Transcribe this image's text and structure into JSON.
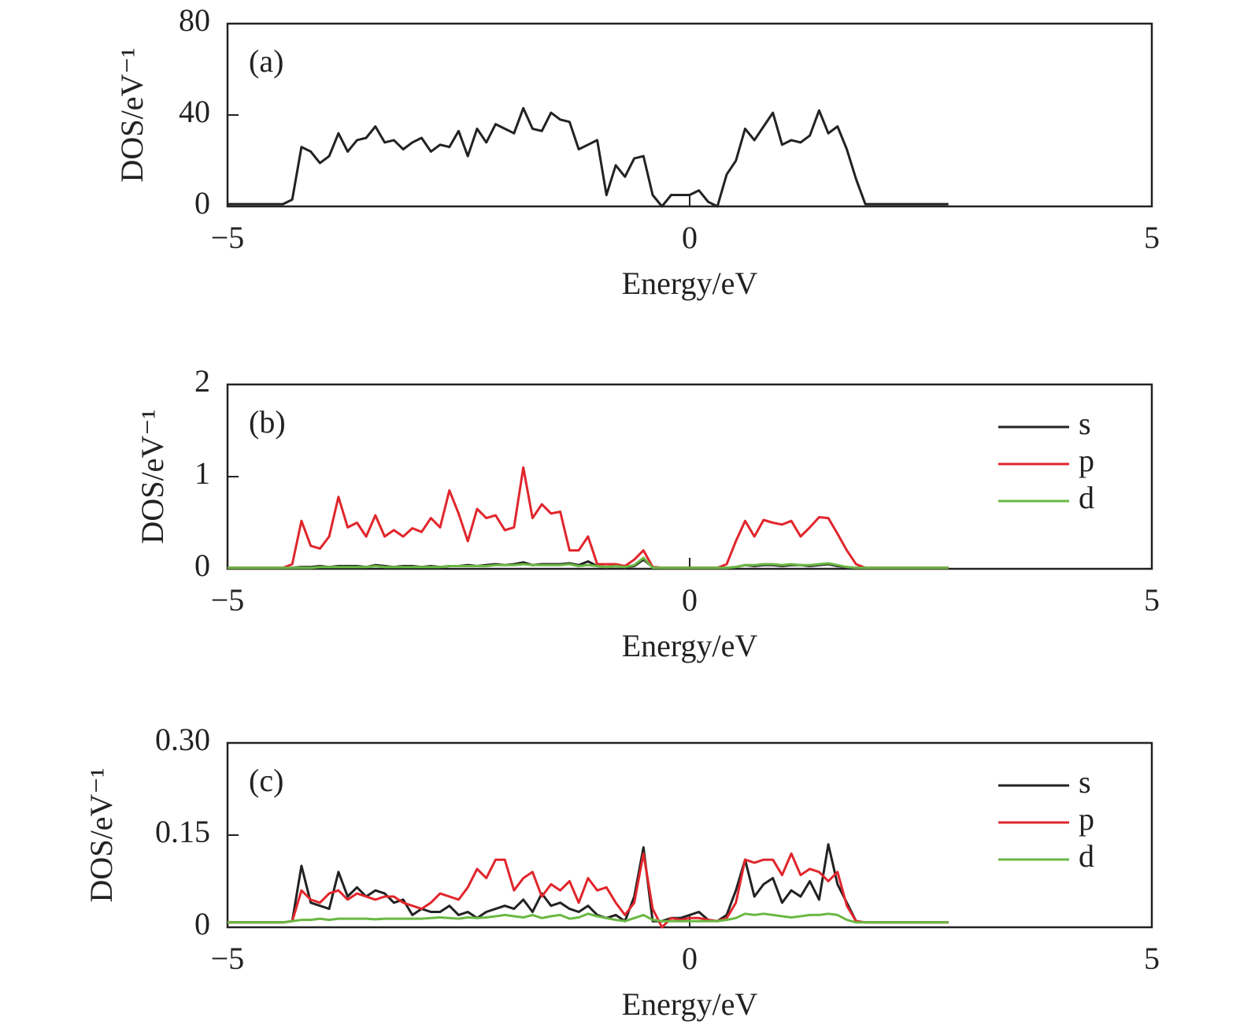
{
  "chart_data": [
    {
      "type": "line",
      "annotation": "(a)",
      "xlabel": "Energy/eV",
      "ylabel": "DOS/eV⁻¹",
      "xlim": [
        -5,
        5
      ],
      "ylim": [
        0,
        80
      ],
      "xticks": [
        {
          "value": -5,
          "label": "−5"
        },
        0,
        5
      ],
      "yticks": [
        0,
        40,
        80
      ],
      "x": [
        -5,
        -4.9,
        -4.8,
        -4.7,
        -4.6,
        -4.5,
        -4.4,
        -4.3,
        -4.2,
        -4.1,
        -4,
        -3.9,
        -3.8,
        -3.7,
        -3.6,
        -3.5,
        -3.4,
        -3.3,
        -3.2,
        -3.1,
        -3,
        -2.9,
        -2.8,
        -2.7,
        -2.6,
        -2.5,
        -2.4,
        -2.3,
        -2.2,
        -2.1,
        -2,
        -1.9,
        -1.8,
        -1.7,
        -1.6,
        -1.5,
        -1.4,
        -1.3,
        -1.2,
        -1.1,
        -1,
        -0.9,
        -0.8,
        -0.7,
        -0.6,
        -0.5,
        -0.4,
        -0.3,
        -0.2,
        -0.1,
        0,
        0.1,
        0.2,
        0.3,
        0.4,
        0.5,
        0.6,
        0.7,
        0.8,
        0.9,
        1,
        1.1,
        1.2,
        1.3,
        1.4,
        1.5,
        1.6,
        1.7,
        1.8,
        1.9,
        2,
        2.1,
        2.2,
        2.3,
        2.4,
        2.5,
        2.6,
        2.7,
        2.8
      ],
      "color": "#222222",
      "values": [
        1,
        1,
        1,
        1,
        1,
        1,
        1,
        3,
        26,
        24,
        19,
        22,
        32,
        24,
        29,
        30,
        35,
        28,
        29,
        25,
        28,
        30,
        24,
        27,
        26,
        33,
        22,
        34,
        28,
        36,
        34,
        32,
        43,
        34,
        33,
        41,
        38,
        37,
        25,
        27,
        29,
        5,
        18,
        13,
        21,
        22,
        5,
        0,
        5,
        5,
        5,
        7,
        2,
        0,
        14,
        20,
        34,
        29,
        35,
        41,
        27,
        29,
        28,
        31,
        42,
        32,
        35,
        25,
        12,
        1,
        1,
        1,
        1,
        1,
        1,
        1,
        1,
        1,
        1
      ]
    },
    {
      "type": "line",
      "annotation": "(b)",
      "xlabel": "Energy/eV",
      "ylabel": "DOS/eV⁻¹",
      "xlim": [
        -5,
        5
      ],
      "ylim": [
        0,
        2
      ],
      "xticks": [
        {
          "value": -5,
          "label": "−5"
        },
        0,
        5
      ],
      "yticks": [
        0,
        1,
        2
      ],
      "legend": "upper right",
      "x": [
        -5,
        -4.9,
        -4.8,
        -4.7,
        -4.6,
        -4.5,
        -4.4,
        -4.3,
        -4.2,
        -4.1,
        -4,
        -3.9,
        -3.8,
        -3.7,
        -3.6,
        -3.5,
        -3.4,
        -3.3,
        -3.2,
        -3.1,
        -3,
        -2.9,
        -2.8,
        -2.7,
        -2.6,
        -2.5,
        -2.4,
        -2.3,
        -2.2,
        -2.1,
        -2,
        -1.9,
        -1.8,
        -1.7,
        -1.6,
        -1.5,
        -1.4,
        -1.3,
        -1.2,
        -1.1,
        -1,
        -0.9,
        -0.8,
        -0.7,
        -0.6,
        -0.5,
        -0.4,
        -0.3,
        -0.2,
        -0.1,
        0,
        0.1,
        0.2,
        0.3,
        0.4,
        0.5,
        0.6,
        0.7,
        0.8,
        0.9,
        1,
        1.1,
        1.2,
        1.3,
        1.4,
        1.5,
        1.6,
        1.7,
        1.8,
        1.9,
        2,
        2.1,
        2.2,
        2.3,
        2.4,
        2.5,
        2.6,
        2.7,
        2.8
      ],
      "series": [
        {
          "name": "s",
          "color": "#222222",
          "values": [
            0.01,
            0.01,
            0.01,
            0.01,
            0.01,
            0.01,
            0.01,
            0.01,
            0.02,
            0.02,
            0.03,
            0.02,
            0.03,
            0.03,
            0.03,
            0.02,
            0.04,
            0.03,
            0.02,
            0.03,
            0.03,
            0.02,
            0.03,
            0.02,
            0.03,
            0.03,
            0.04,
            0.03,
            0.04,
            0.05,
            0.04,
            0.05,
            0.07,
            0.04,
            0.05,
            0.05,
            0.05,
            0.06,
            0.04,
            0.08,
            0.03,
            0.02,
            0.03,
            0.02,
            0.03,
            0.1,
            0.02,
            0.01,
            0.01,
            0.01,
            0.01,
            0.01,
            0.01,
            0.01,
            0.01,
            0.02,
            0.04,
            0.03,
            0.04,
            0.04,
            0.03,
            0.04,
            0.04,
            0.03,
            0.04,
            0.05,
            0.03,
            0.02,
            0.01,
            0.01,
            0.01,
            0.01,
            0.01,
            0.01,
            0.01,
            0.01,
            0.01,
            0.01,
            0.01
          ]
        },
        {
          "name": "p",
          "color": "#e0262c",
          "values": [
            0.01,
            0.01,
            0.01,
            0.01,
            0.01,
            0.01,
            0.01,
            0.05,
            0.52,
            0.25,
            0.22,
            0.35,
            0.78,
            0.45,
            0.5,
            0.35,
            0.58,
            0.35,
            0.42,
            0.35,
            0.44,
            0.4,
            0.55,
            0.45,
            0.85,
            0.6,
            0.3,
            0.65,
            0.55,
            0.58,
            0.42,
            0.45,
            1.1,
            0.55,
            0.7,
            0.6,
            0.62,
            0.2,
            0.2,
            0.35,
            0.05,
            0.05,
            0.05,
            0.03,
            0.1,
            0.2,
            0.02,
            0.01,
            0.01,
            0.01,
            0.01,
            0.01,
            0.01,
            0.01,
            0.05,
            0.3,
            0.52,
            0.35,
            0.53,
            0.5,
            0.48,
            0.52,
            0.35,
            0.45,
            0.56,
            0.55,
            0.38,
            0.2,
            0.05,
            0.01,
            0.01,
            0.01,
            0.01,
            0.01,
            0.01,
            0.01,
            0.01,
            0.01,
            0.01
          ]
        },
        {
          "name": "d",
          "color": "#6ab843",
          "values": [
            0.01,
            0.01,
            0.01,
            0.01,
            0.01,
            0.01,
            0.01,
            0.01,
            0.01,
            0.01,
            0.02,
            0.02,
            0.02,
            0.02,
            0.02,
            0.02,
            0.03,
            0.02,
            0.02,
            0.02,
            0.02,
            0.02,
            0.02,
            0.02,
            0.03,
            0.03,
            0.03,
            0.03,
            0.03,
            0.04,
            0.04,
            0.04,
            0.05,
            0.04,
            0.04,
            0.04,
            0.04,
            0.05,
            0.03,
            0.04,
            0.03,
            0.02,
            0.03,
            0.02,
            0.04,
            0.12,
            0.01,
            0.01,
            0.01,
            0.01,
            0.01,
            0.01,
            0.01,
            0.01,
            0.01,
            0.02,
            0.04,
            0.04,
            0.05,
            0.05,
            0.04,
            0.05,
            0.04,
            0.04,
            0.05,
            0.06,
            0.04,
            0.02,
            0.01,
            0.01,
            0.01,
            0.01,
            0.01,
            0.01,
            0.01,
            0.01,
            0.01,
            0.01,
            0.01
          ]
        }
      ]
    },
    {
      "type": "line",
      "annotation": "(c)",
      "xlabel": "Energy/eV",
      "ylabel": "DOS/eV⁻¹",
      "xlim": [
        -5,
        5
      ],
      "ylim": [
        0,
        0.3
      ],
      "xticks": [
        {
          "value": -5,
          "label": "−5"
        },
        0,
        5
      ],
      "yticks": [
        0,
        0.15,
        {
          "value": 0.3,
          "label": "0.30"
        }
      ],
      "legend": "upper right",
      "x": [
        -5,
        -4.9,
        -4.8,
        -4.7,
        -4.6,
        -4.5,
        -4.4,
        -4.3,
        -4.2,
        -4.1,
        -4,
        -3.9,
        -3.8,
        -3.7,
        -3.6,
        -3.5,
        -3.4,
        -3.3,
        -3.2,
        -3.1,
        -3,
        -2.9,
        -2.8,
        -2.7,
        -2.6,
        -2.5,
        -2.4,
        -2.3,
        -2.2,
        -2.1,
        -2,
        -1.9,
        -1.8,
        -1.7,
        -1.6,
        -1.5,
        -1.4,
        -1.3,
        -1.2,
        -1.1,
        -1,
        -0.9,
        -0.8,
        -0.7,
        -0.6,
        -0.5,
        -0.4,
        -0.3,
        -0.2,
        -0.1,
        0,
        0.1,
        0.2,
        0.3,
        0.4,
        0.5,
        0.6,
        0.7,
        0.8,
        0.9,
        1,
        1.1,
        1.2,
        1.3,
        1.4,
        1.5,
        1.6,
        1.7,
        1.8,
        1.9,
        2,
        2.1,
        2.2,
        2.3,
        2.4,
        2.5,
        2.6,
        2.7,
        2.8
      ],
      "series": [
        {
          "name": "s",
          "color": "#222222",
          "values": [
            0.008,
            0.008,
            0.008,
            0.008,
            0.008,
            0.008,
            0.008,
            0.01,
            0.1,
            0.04,
            0.035,
            0.03,
            0.09,
            0.05,
            0.065,
            0.05,
            0.06,
            0.055,
            0.04,
            0.045,
            0.02,
            0.03,
            0.025,
            0.025,
            0.035,
            0.02,
            0.025,
            0.015,
            0.025,
            0.03,
            0.035,
            0.03,
            0.045,
            0.025,
            0.055,
            0.035,
            0.04,
            0.03,
            0.025,
            0.035,
            0.02,
            0.015,
            0.02,
            0.01,
            0.05,
            0.13,
            0.01,
            0.01,
            0.015,
            0.015,
            0.02,
            0.025,
            0.012,
            0.01,
            0.02,
            0.06,
            0.11,
            0.05,
            0.07,
            0.08,
            0.04,
            0.06,
            0.05,
            0.075,
            0.045,
            0.135,
            0.07,
            0.04,
            0.01,
            0.008,
            0.008,
            0.008,
            0.008,
            0.008,
            0.008,
            0.008,
            0.008,
            0.008,
            0.008
          ]
        },
        {
          "name": "p",
          "color": "#e0262c",
          "values": [
            0.008,
            0.008,
            0.008,
            0.008,
            0.008,
            0.008,
            0.008,
            0.01,
            0.06,
            0.045,
            0.04,
            0.055,
            0.06,
            0.045,
            0.055,
            0.05,
            0.045,
            0.05,
            0.05,
            0.04,
            0.035,
            0.03,
            0.04,
            0.055,
            0.05,
            0.045,
            0.065,
            0.095,
            0.08,
            0.11,
            0.11,
            0.06,
            0.08,
            0.09,
            0.05,
            0.07,
            0.06,
            0.075,
            0.04,
            0.08,
            0.06,
            0.065,
            0.04,
            0.02,
            0.04,
            0.12,
            0.03,
            0,
            0.015,
            0.012,
            0.015,
            0.015,
            0.012,
            0.01,
            0.015,
            0.04,
            0.11,
            0.105,
            0.11,
            0.11,
            0.085,
            0.12,
            0.085,
            0.095,
            0.09,
            0.075,
            0.09,
            0.035,
            0.01,
            0.008,
            0.008,
            0.008,
            0.008,
            0.008,
            0.008,
            0.008,
            0.008,
            0.008,
            0.008
          ]
        },
        {
          "name": "d",
          "color": "#6ab843",
          "values": [
            0.008,
            0.008,
            0.008,
            0.008,
            0.008,
            0.008,
            0.008,
            0.01,
            0.012,
            0.012,
            0.014,
            0.012,
            0.014,
            0.014,
            0.014,
            0.014,
            0.013,
            0.014,
            0.014,
            0.014,
            0.014,
            0.014,
            0.015,
            0.016,
            0.015,
            0.014,
            0.016,
            0.015,
            0.016,
            0.018,
            0.02,
            0.018,
            0.016,
            0.02,
            0.015,
            0.018,
            0.02,
            0.014,
            0.016,
            0.022,
            0.018,
            0.015,
            0.012,
            0.01,
            0.015,
            0.02,
            0.012,
            0.01,
            0.01,
            0.01,
            0.01,
            0.01,
            0.01,
            0.01,
            0.012,
            0.015,
            0.022,
            0.02,
            0.022,
            0.02,
            0.018,
            0.016,
            0.018,
            0.02,
            0.02,
            0.022,
            0.02,
            0.012,
            0.008,
            0.008,
            0.008,
            0.008,
            0.008,
            0.008,
            0.008,
            0.008,
            0.008,
            0.008,
            0.008
          ]
        }
      ]
    }
  ]
}
